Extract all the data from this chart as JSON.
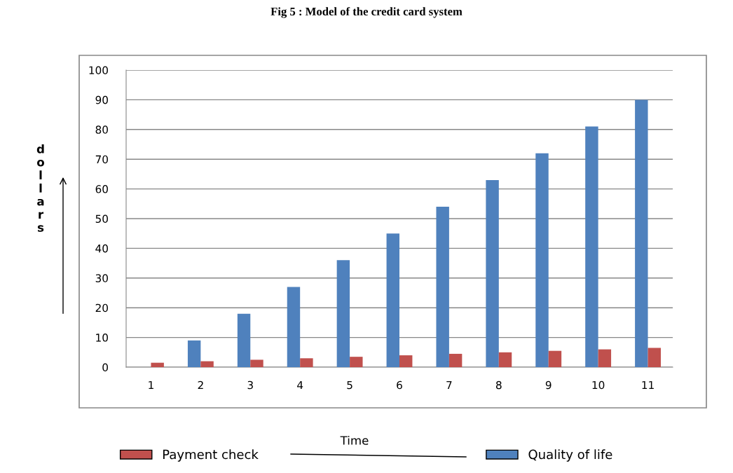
{
  "chart_data": {
    "type": "bar",
    "title": "Fig 5 : Model of the credit card system",
    "xlabel": "Time",
    "ylabel": "dollars",
    "categories": [
      "1",
      "2",
      "3",
      "4",
      "5",
      "6",
      "7",
      "8",
      "9",
      "10",
      "11"
    ],
    "series": [
      {
        "name": "Quality of life",
        "color": "#4f81bd",
        "values": [
          0,
          9,
          18,
          27,
          36,
          45,
          54,
          63,
          72,
          81,
          90
        ]
      },
      {
        "name": "Payment check",
        "color": "#c0504d",
        "values": [
          1.5,
          2,
          2.5,
          3,
          3.5,
          4,
          4.5,
          5,
          5.5,
          6,
          6.5
        ]
      }
    ],
    "ylim": [
      0,
      100
    ],
    "yticks": [
      0,
      10,
      20,
      30,
      40,
      50,
      60,
      70,
      80,
      90,
      100
    ],
    "grid": "y",
    "legend": "bottom"
  }
}
